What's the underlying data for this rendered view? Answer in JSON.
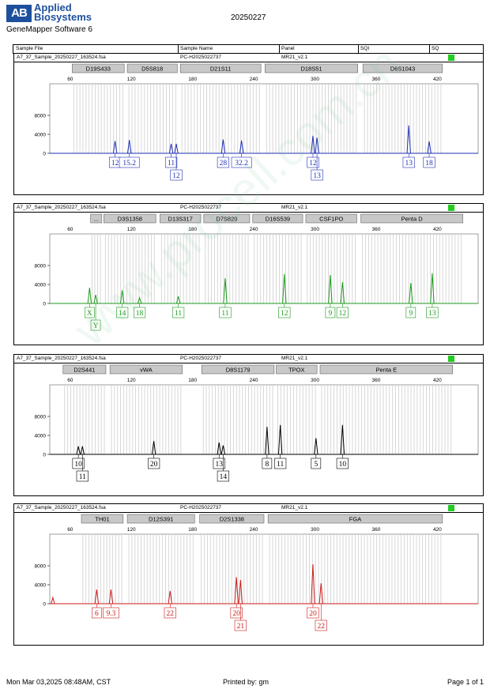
{
  "header": {
    "logo_mark": "AB",
    "brand_line1": "Applied",
    "brand_line2": "Biosystems",
    "software": "GeneMapper Software 6",
    "report_date": "20250227"
  },
  "columns": {
    "sample_file": "Sample File",
    "sample_name": "Sample Name",
    "panel": "Panel",
    "sqi": "SQI",
    "sq": "SQ"
  },
  "footer": {
    "timestamp": "Mon Mar 03,2025 08:48AM, CST",
    "printed_by": "Printed by: gm",
    "page": "Page 1 of 1"
  },
  "watermark": "www.procell.com.cn",
  "chart_data": [
    {
      "type": "line",
      "dye": "blue",
      "color": "#1f2fb4",
      "sample_file": "A7_37_Sample_20250227_163524.fsa",
      "sample_name": "PC-H2025022737",
      "panel": "MR21_v2.1",
      "xlim": [
        40,
        460
      ],
      "x_ticks": [
        60,
        120,
        180,
        240,
        300,
        360,
        420
      ],
      "ylim": [
        0,
        13000
      ],
      "y_ticks": [
        0,
        4000,
        8000
      ],
      "loci": [
        {
          "name": "D19S433",
          "start": 62,
          "end": 113
        },
        {
          "name": "D5S818",
          "start": 116,
          "end": 165
        },
        {
          "name": "D21S11",
          "start": 168,
          "end": 247
        },
        {
          "name": "D18S51",
          "start": 251,
          "end": 342
        },
        {
          "name": "D6S1043",
          "start": 347,
          "end": 425
        }
      ],
      "peaks": [
        {
          "x": 104,
          "height": 2600
        },
        {
          "x": 118,
          "height": 2800
        },
        {
          "x": 159,
          "height": 2000
        },
        {
          "x": 164,
          "height": 2000
        },
        {
          "x": 210,
          "height": 2900
        },
        {
          "x": 228,
          "height": 2700
        },
        {
          "x": 298,
          "height": 3700
        },
        {
          "x": 302,
          "height": 3300
        },
        {
          "x": 392,
          "height": 5900
        },
        {
          "x": 412,
          "height": 2500
        }
      ],
      "alleles": [
        {
          "label": "12",
          "x": 104,
          "row": 0
        },
        {
          "label": "15.2",
          "x": 118,
          "row": 0
        },
        {
          "label": "11",
          "x": 159,
          "row": 0
        },
        {
          "label": "12",
          "x": 164,
          "row": 1
        },
        {
          "label": "28",
          "x": 210,
          "row": 0
        },
        {
          "label": "32.2",
          "x": 228,
          "row": 0
        },
        {
          "label": "12",
          "x": 298,
          "row": 0
        },
        {
          "label": "13",
          "x": 302,
          "row": 1
        },
        {
          "label": "13",
          "x": 392,
          "row": 0
        },
        {
          "label": "18",
          "x": 412,
          "row": 0
        }
      ]
    },
    {
      "type": "line",
      "dye": "green",
      "color": "#1b9a1b",
      "sample_file": "A7_37_Sample_20250227_163524.fsa",
      "sample_name": "PC-H2025022737",
      "panel": "MR21_v2.1",
      "xlim": [
        40,
        460
      ],
      "x_ticks": [
        60,
        120,
        180,
        240,
        300,
        360,
        420
      ],
      "ylim": [
        0,
        13000
      ],
      "y_ticks": [
        0,
        4000,
        8000
      ],
      "loci": [
        {
          "name": "...",
          "start": 80,
          "end": 91
        },
        {
          "name": "D3S1358",
          "start": 93,
          "end": 144
        },
        {
          "name": "D13S317",
          "start": 148,
          "end": 188
        },
        {
          "name": "D7S820",
          "start": 191,
          "end": 236
        },
        {
          "name": "D16S539",
          "start": 239,
          "end": 288
        },
        {
          "name": "CSF1PO",
          "start": 291,
          "end": 341
        },
        {
          "name": "Penta D",
          "start": 345,
          "end": 445
        }
      ],
      "peaks": [
        {
          "x": 79,
          "height": 3300
        },
        {
          "x": 85,
          "height": 1800
        },
        {
          "x": 111,
          "height": 2800
        },
        {
          "x": 128,
          "height": 1200
        },
        {
          "x": 166,
          "height": 1500
        },
        {
          "x": 212,
          "height": 5300
        },
        {
          "x": 270,
          "height": 6200
        },
        {
          "x": 315,
          "height": 6000
        },
        {
          "x": 327,
          "height": 4500
        },
        {
          "x": 394,
          "height": 4300
        },
        {
          "x": 415,
          "height": 6400
        }
      ],
      "alleles": [
        {
          "label": "X",
          "x": 79,
          "row": 0
        },
        {
          "label": "Y",
          "x": 85,
          "row": 1
        },
        {
          "label": "14",
          "x": 111,
          "row": 0
        },
        {
          "label": "18",
          "x": 128,
          "row": 0
        },
        {
          "label": "11",
          "x": 166,
          "row": 0
        },
        {
          "label": "11",
          "x": 212,
          "row": 0
        },
        {
          "label": "12",
          "x": 270,
          "row": 0
        },
        {
          "label": "9",
          "x": 315,
          "row": 0
        },
        {
          "label": "12",
          "x": 327,
          "row": 0
        },
        {
          "label": "9",
          "x": 394,
          "row": 0
        },
        {
          "label": "13",
          "x": 415,
          "row": 0
        }
      ]
    },
    {
      "type": "line",
      "dye": "black",
      "color": "#000000",
      "sample_file": "A7_37_Sample_20250227_163524.fsa",
      "sample_name": "PC-H2025022737",
      "panel": "MR21_v2.1",
      "xlim": [
        40,
        460
      ],
      "x_ticks": [
        60,
        120,
        180,
        240,
        300,
        360,
        420
      ],
      "ylim": [
        0,
        13000
      ],
      "y_ticks": [
        0,
        4000,
        8000
      ],
      "loci": [
        {
          "name": "D2S441",
          "start": 53,
          "end": 95
        },
        {
          "name": "vWA",
          "start": 99,
          "end": 170
        },
        {
          "name": "D8S1179",
          "start": 189,
          "end": 260
        },
        {
          "name": "TPOX",
          "start": 262,
          "end": 302
        },
        {
          "name": "Penta E",
          "start": 305,
          "end": 435
        }
      ],
      "peaks": [
        {
          "x": 68,
          "height": 1700
        },
        {
          "x": 72,
          "height": 1700
        },
        {
          "x": 142,
          "height": 2800
        },
        {
          "x": 206,
          "height": 2500
        },
        {
          "x": 210,
          "height": 1900
        },
        {
          "x": 253,
          "height": 5800
        },
        {
          "x": 266,
          "height": 6200
        },
        {
          "x": 301,
          "height": 3400
        },
        {
          "x": 327,
          "height": 6200
        }
      ],
      "alleles": [
        {
          "label": "10",
          "x": 68,
          "row": 0
        },
        {
          "label": "11",
          "x": 72,
          "row": 1
        },
        {
          "label": "20",
          "x": 142,
          "row": 0
        },
        {
          "label": "13",
          "x": 206,
          "row": 0
        },
        {
          "label": "14",
          "x": 210,
          "row": 1
        },
        {
          "label": "8",
          "x": 253,
          "row": 0
        },
        {
          "label": "11",
          "x": 266,
          "row": 0
        },
        {
          "label": "5",
          "x": 301,
          "row": 0
        },
        {
          "label": "10",
          "x": 327,
          "row": 0
        }
      ]
    },
    {
      "type": "line",
      "dye": "red",
      "color": "#cc1b1b",
      "sample_file": "A7_37_Sample_20250227_163524.fsa",
      "sample_name": "PC-H2025022737",
      "panel": "MR21_v2.1",
      "xlim": [
        40,
        460
      ],
      "x_ticks": [
        60,
        120,
        180,
        240,
        300,
        360,
        420
      ],
      "ylim": [
        0,
        13000
      ],
      "y_ticks": [
        0,
        4000,
        8000
      ],
      "loci": [
        {
          "name": "TH01",
          "start": 71,
          "end": 112
        },
        {
          "name": "D12S391",
          "start": 116,
          "end": 182
        },
        {
          "name": "D2S1338",
          "start": 187,
          "end": 250
        },
        {
          "name": "FGA",
          "start": 254,
          "end": 425
        }
      ],
      "peaks": [
        {
          "x": 43,
          "height": 1300
        },
        {
          "x": 86,
          "height": 3000
        },
        {
          "x": 100,
          "height": 3000
        },
        {
          "x": 158,
          "height": 2700
        },
        {
          "x": 223,
          "height": 5600
        },
        {
          "x": 227,
          "height": 5000
        },
        {
          "x": 298,
          "height": 8300
        },
        {
          "x": 306,
          "height": 4300
        }
      ],
      "alleles": [
        {
          "label": "6",
          "x": 86,
          "row": 0
        },
        {
          "label": "9.3",
          "x": 100,
          "row": 0
        },
        {
          "label": "22",
          "x": 158,
          "row": 0
        },
        {
          "label": "20",
          "x": 223,
          "row": 0
        },
        {
          "label": "21",
          "x": 227,
          "row": 1
        },
        {
          "label": "20",
          "x": 298,
          "row": 0
        },
        {
          "label": "22",
          "x": 306,
          "row": 1
        }
      ]
    }
  ]
}
